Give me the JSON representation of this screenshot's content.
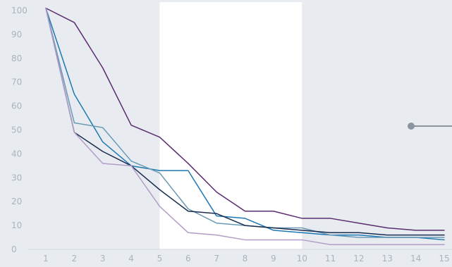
{
  "chart_data": {
    "type": "line",
    "title": "",
    "xlabel": "",
    "ylabel": "",
    "x": [
      1,
      2,
      3,
      4,
      5,
      6,
      7,
      8,
      9,
      10,
      11,
      12,
      13,
      14,
      15
    ],
    "x_tick_labels": [
      "1",
      "2",
      "3",
      "4",
      "5",
      "6",
      "7",
      "8",
      "9",
      "10",
      "11",
      "12",
      "13",
      "14",
      "15"
    ],
    "y_tick_labels": [
      "0",
      "10",
      "20",
      "30",
      "40",
      "50",
      "60",
      "70",
      "80",
      "90",
      "100"
    ],
    "y_ticks": [
      0,
      10,
      20,
      30,
      40,
      50,
      60,
      70,
      80,
      90,
      100
    ],
    "ylim": [
      0,
      100
    ],
    "xlim": [
      1,
      15
    ],
    "grid": false,
    "highlight_band": {
      "from": 5,
      "to": 10,
      "color": "#ffffff"
    },
    "series": [
      {
        "color": "#5b2c6f",
        "values": [
          101,
          95,
          76,
          52,
          47,
          36,
          24,
          16,
          16,
          13,
          13,
          11,
          9,
          8,
          8
        ]
      },
      {
        "color": "#1f78b4",
        "values": [
          101,
          65,
          45,
          35,
          33,
          33,
          14,
          13,
          8,
          7,
          6,
          6,
          5,
          5,
          4
        ]
      },
      {
        "color": "#6a9ab5",
        "values": [
          101,
          53,
          51,
          37,
          32,
          17,
          11,
          10,
          9,
          9,
          6,
          5,
          5,
          5,
          5
        ]
      },
      {
        "color": "#1a2d4f",
        "values": [
          101,
          49,
          41,
          35,
          25,
          16,
          15,
          10,
          9,
          8,
          7,
          7,
          6,
          6,
          6
        ]
      },
      {
        "color": "#b39dc8",
        "values": [
          101,
          49,
          36,
          35,
          18,
          7,
          6,
          4,
          4,
          4,
          2,
          2,
          2,
          2,
          2
        ]
      }
    ],
    "annotation_marker": {
      "color": "#8a949e"
    }
  }
}
